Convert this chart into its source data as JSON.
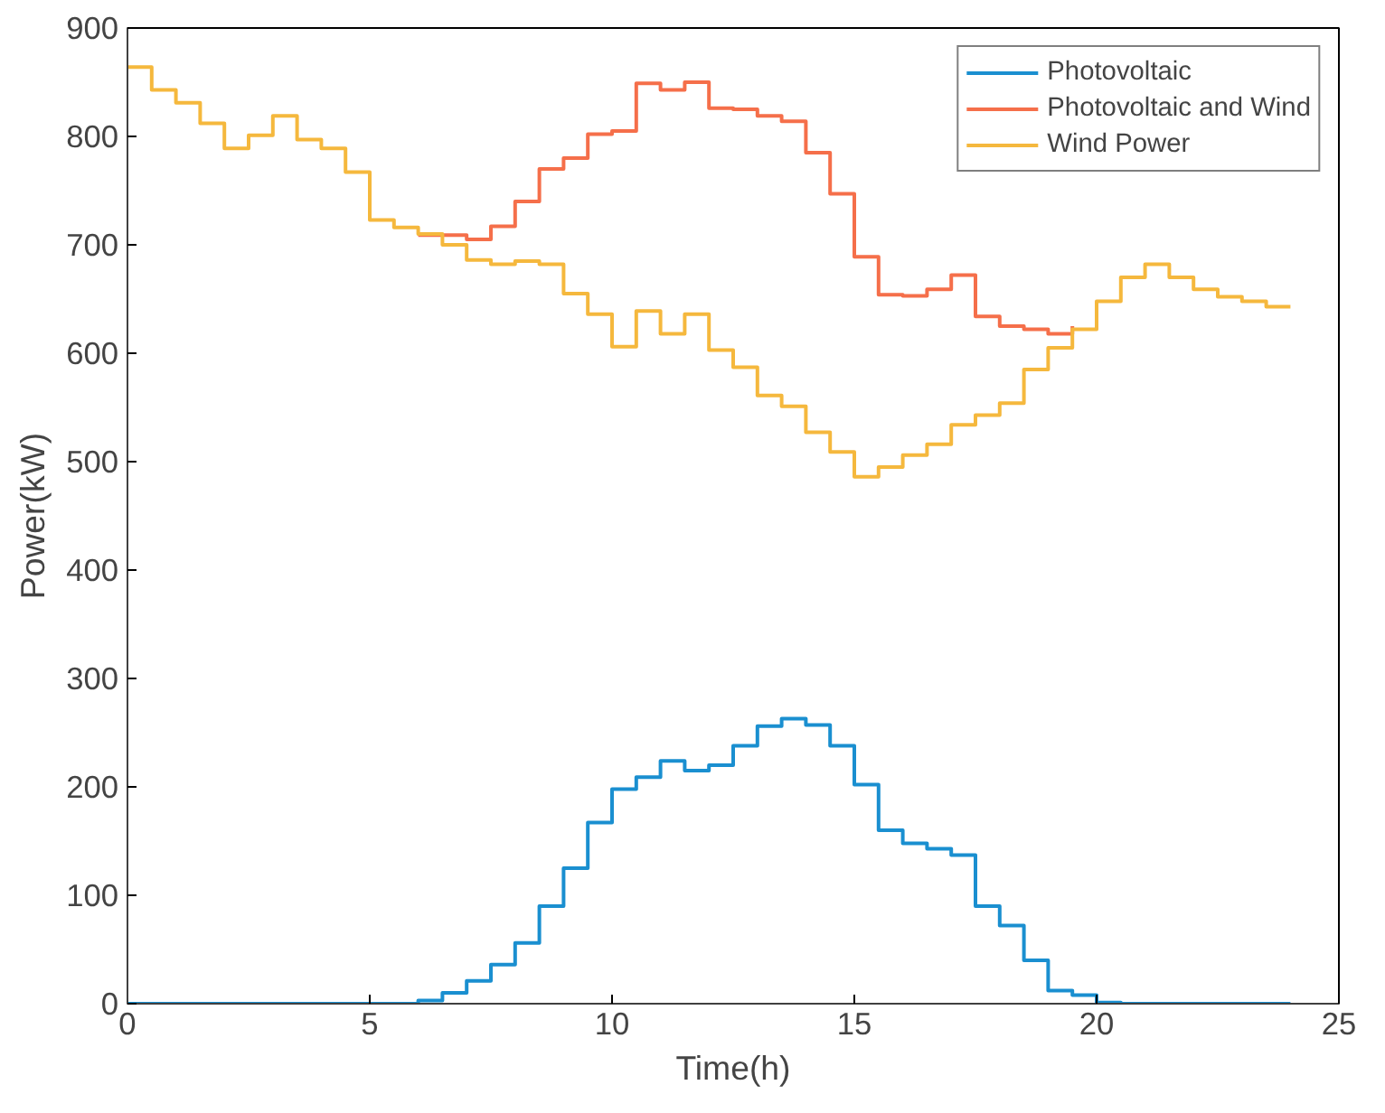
{
  "chart_data": {
    "type": "step",
    "xlabel": "Time(h)",
    "ylabel": "Power(kW)",
    "x": [
      0,
      0.5,
      1,
      1.5,
      2,
      2.5,
      3,
      3.5,
      4,
      4.5,
      5,
      5.5,
      6,
      6.5,
      7,
      7.5,
      8,
      8.5,
      9,
      9.5,
      10,
      10.5,
      11,
      11.5,
      12,
      12.5,
      13,
      13.5,
      14,
      14.5,
      15,
      15.5,
      16,
      16.5,
      17,
      17.5,
      18,
      18.5,
      19,
      19.5,
      20,
      20.5,
      21,
      21.5,
      22,
      22.5,
      23,
      23.5,
      24
    ],
    "series": [
      {
        "name": "Photovoltaic",
        "color": "#1a8fd0",
        "values": [
          0,
          0,
          0,
          0,
          0,
          0,
          0,
          0,
          0,
          0,
          0,
          0,
          3,
          10,
          21,
          36,
          56,
          90,
          125,
          167,
          198,
          209,
          224,
          215,
          220,
          238,
          256,
          263,
          257,
          238,
          202,
          160,
          148,
          143,
          137,
          90,
          72,
          40,
          12,
          8,
          1,
          0,
          0,
          0,
          0,
          0,
          0,
          0,
          0
        ]
      },
      {
        "name": "Photovoltaic and Wind",
        "color": "#f56f4a",
        "values": [
          null,
          null,
          null,
          null,
          null,
          null,
          null,
          null,
          null,
          null,
          null,
          null,
          709,
          709,
          705,
          717,
          740,
          770,
          780,
          802,
          805,
          849,
          843,
          850,
          826,
          825,
          819,
          814,
          785,
          747,
          689,
          654,
          653,
          659,
          672,
          634,
          625,
          622,
          618,
          625,
          null,
          null,
          null,
          null,
          null,
          null,
          null,
          null,
          null
        ]
      },
      {
        "name": "Wind Power",
        "color": "#f5b83d",
        "values": [
          864,
          843,
          831,
          812,
          789,
          801,
          819,
          797,
          789,
          767,
          723,
          716,
          710,
          700,
          686,
          682,
          685,
          682,
          655,
          636,
          606,
          639,
          618,
          636,
          603,
          587,
          561,
          551,
          527,
          509,
          486,
          495,
          506,
          516,
          534,
          543,
          554,
          585,
          605,
          622,
          648,
          670,
          682,
          670,
          659,
          652,
          648,
          643,
          643
        ]
      }
    ],
    "xlim": [
      0,
      25
    ],
    "xticks": [
      0,
      5,
      10,
      15,
      20,
      25
    ],
    "ylim": [
      0,
      900
    ],
    "yticks": [
      0,
      100,
      200,
      300,
      400,
      500,
      600,
      700,
      800,
      900
    ],
    "grid": false,
    "legend": "top right"
  }
}
